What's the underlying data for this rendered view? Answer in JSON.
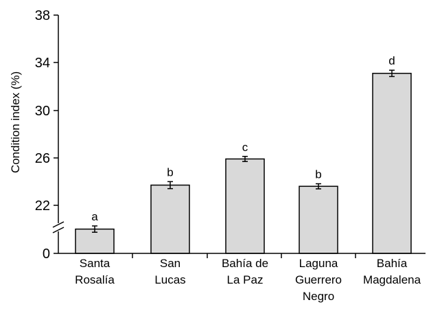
{
  "chart_data": {
    "type": "bar",
    "ylabel": "Condition index (%)",
    "y_axis_break": true,
    "ylim": [
      18,
      38
    ],
    "y_ticks": [
      "0",
      "22",
      "26",
      "30",
      "34",
      "38"
    ],
    "categories": [
      [
        "Santa",
        "Rosalía"
      ],
      [
        "San",
        "Lucas"
      ],
      [
        "Bahía de",
        "La Paz"
      ],
      [
        "Laguna",
        "Guerrero",
        "Negro"
      ],
      [
        "Bahía",
        "Magdalena"
      ]
    ],
    "values": [
      20.0,
      23.7,
      25.9,
      23.6,
      33.1
    ],
    "errors": [
      0.15,
      0.18,
      0.1,
      0.1,
      0.15
    ],
    "significance": [
      "a",
      "b",
      "c",
      "b",
      "d"
    ],
    "bar_color": "#d9d9d9"
  }
}
